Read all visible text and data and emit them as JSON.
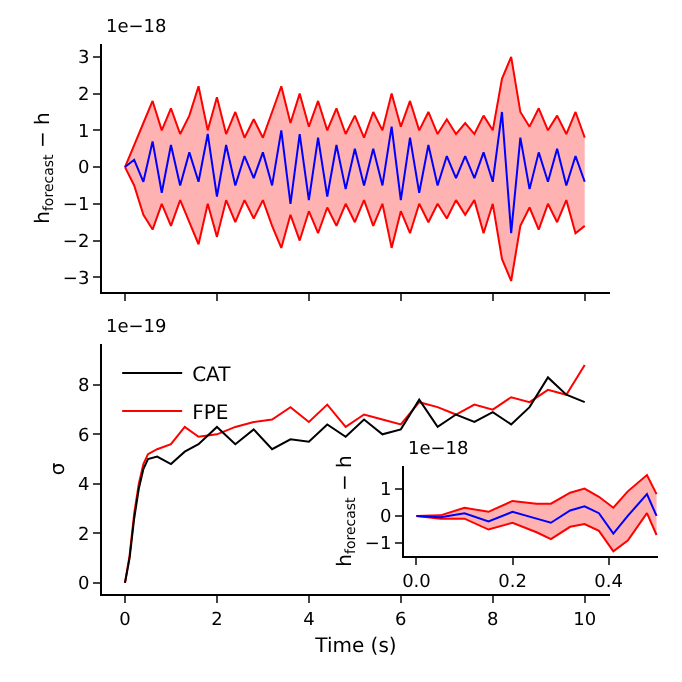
{
  "chart_data": [
    {
      "type": "line",
      "ylabel": "h$_{forecast}$ − h",
      "annotations": [
        "1e−18"
      ],
      "tick_labels": "y",
      "xlim": [
        -0.5,
        10.55
      ],
      "ylim": [
        -3.4,
        3.35
      ],
      "xticks": [
        0,
        2,
        4,
        6,
        8,
        10
      ],
      "yticks": [
        {
          "value": -3,
          "label": "−3"
        },
        {
          "value": -2,
          "label": "−2"
        },
        {
          "value": -1,
          "label": "−1"
        },
        0,
        1,
        2,
        3
      ],
      "x": [
        0,
        0.2,
        0.4,
        0.6,
        0.8,
        1,
        1.2,
        1.4,
        1.6,
        1.8,
        2,
        2.2,
        2.4,
        2.6,
        2.8,
        3,
        3.2,
        3.4,
        3.6,
        3.8,
        4,
        4.2,
        4.4,
        4.6,
        4.8,
        5,
        5.2,
        5.4,
        5.6,
        5.8,
        6,
        6.2,
        6.4,
        6.6,
        6.8,
        7,
        7.2,
        7.4,
        7.6,
        7.8,
        8,
        8.2,
        8.4,
        8.6,
        8.8,
        9,
        9.2,
        9.4,
        9.6,
        9.8,
        10
      ],
      "series": [
        {
          "color": "#ff0000",
          "values": [
            0,
            0.6,
            1.2,
            1.8,
            1.0,
            1.6,
            0.9,
            1.4,
            2.2,
            1.0,
            1.9,
            0.9,
            1.5,
            0.8,
            1.3,
            0.8,
            1.5,
            2.2,
            1.2,
            2.0,
            1.1,
            1.8,
            1.0,
            1.6,
            0.9,
            1.4,
            0.8,
            1.5,
            1.0,
            2.0,
            1.1,
            1.8,
            1.0,
            1.5,
            0.9,
            1.3,
            0.9,
            1.2,
            0.9,
            1.4,
            1.0,
            2.4,
            3.0,
            1.5,
            1.1,
            1.6,
            1.0,
            1.4,
            0.9,
            1.5,
            0.8
          ]
        },
        {
          "color": "#ff0000",
          "values": [
            0,
            -0.5,
            -1.3,
            -1.7,
            -1.0,
            -1.6,
            -0.9,
            -1.5,
            -2.1,
            -1.0,
            -1.9,
            -0.9,
            -1.5,
            -0.9,
            -1.4,
            -0.9,
            -1.6,
            -2.2,
            -1.3,
            -2.0,
            -1.2,
            -1.8,
            -1.1,
            -1.6,
            -1.0,
            -1.5,
            -0.9,
            -1.6,
            -1.0,
            -2.2,
            -1.2,
            -1.8,
            -1.0,
            -1.5,
            -1.0,
            -1.4,
            -0.9,
            -1.3,
            -0.9,
            -1.8,
            -1.0,
            -2.5,
            -3.1,
            -1.6,
            -1.1,
            -1.7,
            -1.0,
            -1.5,
            -0.9,
            -1.8,
            -1.6
          ]
        },
        {
          "color": "#0000ff",
          "values": [
            0,
            0.2,
            -0.4,
            0.7,
            -0.7,
            0.6,
            -0.5,
            0.4,
            -0.4,
            0.9,
            -0.8,
            0.6,
            -0.5,
            0.3,
            -0.3,
            0.4,
            -0.5,
            1.0,
            -1.0,
            0.9,
            -0.9,
            0.8,
            -0.8,
            0.6,
            -0.6,
            0.5,
            -0.5,
            0.5,
            -0.5,
            1.1,
            -0.9,
            0.8,
            -0.7,
            0.6,
            -0.5,
            0.3,
            -0.3,
            0.3,
            -0.3,
            0.4,
            -0.4,
            1.5,
            -1.8,
            0.8,
            -0.6,
            0.4,
            -0.4,
            0.5,
            -0.5,
            0.3,
            -0.4
          ],
          "upper": [
            0,
            0.6,
            1.2,
            1.8,
            1.0,
            1.6,
            0.9,
            1.4,
            2.2,
            1.0,
            1.9,
            0.9,
            1.5,
            0.8,
            1.3,
            0.8,
            1.5,
            2.2,
            1.2,
            2.0,
            1.1,
            1.8,
            1.0,
            1.6,
            0.9,
            1.4,
            0.8,
            1.5,
            1.0,
            2.0,
            1.1,
            1.8,
            1.0,
            1.5,
            0.9,
            1.3,
            0.9,
            1.2,
            0.9,
            1.4,
            1.0,
            2.4,
            3.0,
            1.5,
            1.1,
            1.6,
            1.0,
            1.4,
            0.9,
            1.5,
            0.8
          ],
          "lower": [
            0,
            -0.5,
            -1.3,
            -1.7,
            -1.0,
            -1.6,
            -0.9,
            -1.5,
            -2.1,
            -1.0,
            -1.9,
            -0.9,
            -1.5,
            -0.9,
            -1.4,
            -0.9,
            -1.6,
            -2.2,
            -1.3,
            -2.0,
            -1.2,
            -1.8,
            -1.1,
            -1.6,
            -1.0,
            -1.5,
            -0.9,
            -1.6,
            -1.0,
            -2.2,
            -1.2,
            -1.8,
            -1.0,
            -1.5,
            -1.0,
            -1.4,
            -0.9,
            -1.3,
            -0.9,
            -1.8,
            -1.0,
            -2.5,
            -3.1,
            -1.6,
            -1.1,
            -1.7,
            -1.0,
            -1.5,
            -0.9,
            -1.8,
            -1.6
          ]
        }
      ]
    },
    {
      "type": "line",
      "xlabel": "Time (s)",
      "ylabel": "σ",
      "annotations": [
        "1e−19"
      ],
      "legend": "top left",
      "xlim": [
        -0.5,
        10.55
      ],
      "ylim": [
        -0.45,
        9.65
      ],
      "xticks": [
        0,
        2,
        4,
        6,
        8,
        10
      ],
      "yticks": [
        0,
        2,
        4,
        6,
        8
      ],
      "x": [
        0,
        0.1,
        0.2,
        0.3,
        0.4,
        0.5,
        0.7,
        1.0,
        1.3,
        1.6,
        2.0,
        2.4,
        2.8,
        3.2,
        3.6,
        4.0,
        4.4,
        4.8,
        5.2,
        5.6,
        6.0,
        6.4,
        6.8,
        7.2,
        7.6,
        8.0,
        8.4,
        8.8,
        9.2,
        9.6,
        10.0
      ],
      "series": [
        {
          "name": "FPE",
          "color": "#ff0000",
          "values": [
            0,
            1.1,
            2.8,
            4.0,
            4.8,
            5.2,
            5.4,
            5.6,
            6.3,
            5.9,
            6.0,
            6.3,
            6.5,
            6.6,
            7.1,
            6.5,
            7.2,
            6.3,
            6.8,
            6.6,
            6.4,
            7.3,
            7.1,
            6.8,
            7.2,
            7.0,
            7.5,
            7.3,
            7.8,
            7.6,
            8.8
          ]
        },
        {
          "name": "CAT",
          "color": "#000000",
          "values": [
            0,
            1.0,
            2.6,
            3.8,
            4.6,
            5.0,
            5.1,
            4.8,
            5.3,
            5.6,
            6.3,
            5.6,
            6.2,
            5.4,
            5.8,
            5.7,
            6.4,
            5.9,
            6.6,
            6.0,
            6.2,
            7.4,
            6.3,
            6.8,
            6.5,
            6.9,
            6.4,
            7.1,
            8.3,
            7.6,
            7.3
          ]
        }
      ]
    },
    {
      "type": "line",
      "ylabel": "h$_{forecast}$ − h",
      "annotations": [
        "1e−18"
      ],
      "xlim": [
        -0.026,
        0.503
      ],
      "ylim": [
        -1.47,
        1.83
      ],
      "xticks": [
        {
          "value": 0,
          "label": "0.0"
        },
        {
          "value": 0.2,
          "label": "0.2"
        },
        {
          "value": 0.4,
          "label": "0.4"
        }
      ],
      "yticks": [
        {
          "value": -1,
          "label": "−1"
        },
        0,
        1
      ],
      "x": [
        0,
        0.05,
        0.1,
        0.15,
        0.2,
        0.25,
        0.28,
        0.32,
        0.35,
        0.38,
        0.41,
        0.44,
        0.48,
        0.5
      ],
      "series": [
        {
          "color": "#ff0000",
          "values": [
            0,
            0.02,
            0.3,
            0.15,
            0.55,
            0.45,
            0.45,
            0.85,
            1.0,
            0.7,
            0.3,
            0.9,
            1.5,
            0.8
          ]
        },
        {
          "color": "#ff0000",
          "values": [
            0,
            -0.1,
            -0.1,
            -0.5,
            -0.25,
            -0.6,
            -0.85,
            -0.4,
            -0.3,
            -0.55,
            -1.3,
            -0.9,
            0.1,
            -0.7
          ]
        },
        {
          "color": "#0000ff",
          "values": [
            0,
            -0.05,
            0.1,
            -0.2,
            0.15,
            -0.1,
            -0.25,
            0.2,
            0.35,
            0.1,
            -0.65,
            0.0,
            0.8,
            0.0
          ],
          "upper": [
            0,
            0.02,
            0.3,
            0.15,
            0.55,
            0.45,
            0.45,
            0.85,
            1.0,
            0.7,
            0.3,
            0.9,
            1.5,
            0.8
          ],
          "lower": [
            0,
            -0.1,
            -0.1,
            -0.5,
            -0.25,
            -0.6,
            -0.85,
            -0.4,
            -0.3,
            -0.55,
            -1.3,
            -0.9,
            0.1,
            -0.7
          ]
        }
      ]
    }
  ]
}
